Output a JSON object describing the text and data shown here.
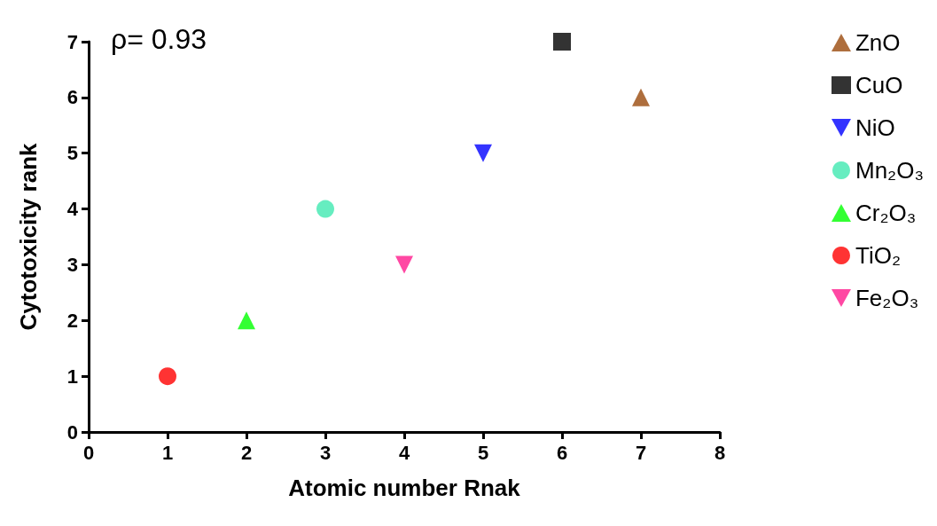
{
  "chart_data": {
    "type": "scatter",
    "xlabel": "Atomic number Rnak",
    "ylabel": "Cytotoxicity rank",
    "annotations": [
      "ρ= 0.93"
    ],
    "xlim": [
      0,
      8
    ],
    "xticks": [
      0,
      1,
      2,
      3,
      4,
      5,
      6,
      7,
      8
    ],
    "ylim": [
      0,
      7
    ],
    "yticks": [
      0,
      1,
      2,
      3,
      4,
      5,
      6,
      7
    ],
    "grid": false,
    "legend": "right",
    "series": [
      {
        "name": "ZnO",
        "color": "#9a4a0c",
        "marker": "triangle",
        "x": [
          7
        ],
        "values": [
          6
        ]
      },
      {
        "name": "CuO",
        "color": "#000000",
        "marker": "square",
        "x": [
          6
        ],
        "values": [
          7
        ]
      },
      {
        "name": "NiO",
        "color": "#0000ff",
        "marker": "triangle-down",
        "x": [
          5
        ],
        "values": [
          5
        ]
      },
      {
        "name": "Mn₂O₃",
        "color": "#40e8b0",
        "marker": "circle",
        "x": [
          3
        ],
        "values": [
          4
        ]
      },
      {
        "name": "Cr₂O₃",
        "color": "#00ff00",
        "marker": "triangle",
        "x": [
          2
        ],
        "values": [
          2
        ]
      },
      {
        "name": "TiO₂",
        "color": "#ff0000",
        "marker": "circle",
        "x": [
          1
        ],
        "values": [
          1
        ]
      },
      {
        "name": "Fe₂O₃",
        "color": "#ff1a8c",
        "marker": "triangle-down",
        "x": [
          4
        ],
        "values": [
          3
        ]
      }
    ]
  }
}
